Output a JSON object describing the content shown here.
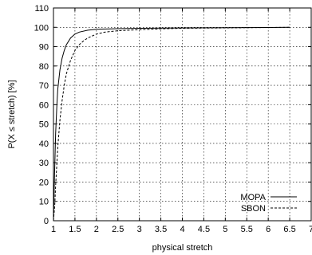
{
  "chart_data": {
    "type": "line",
    "title": "",
    "xlabel": "physical stretch",
    "ylabel": "P(X ≤ stretch) [%]",
    "xlim": [
      1,
      7
    ],
    "ylim": [
      0,
      110
    ],
    "xticks": [
      "1",
      "1.5",
      "2",
      "2.5",
      "3",
      "3.5",
      "4",
      "4.5",
      "5",
      "5.5",
      "6",
      "6.5",
      "7"
    ],
    "yticks": [
      "0",
      "10",
      "20",
      "30",
      "40",
      "50",
      "60",
      "70",
      "80",
      "90",
      "100",
      "110"
    ],
    "grid": true,
    "legend_position": "bottom-right",
    "series": [
      {
        "name": "MOPA",
        "style": "solid",
        "x": [
          1.0,
          1.02,
          1.05,
          1.08,
          1.1,
          1.15,
          1.2,
          1.25,
          1.3,
          1.4,
          1.5,
          1.6,
          1.8,
          2.0,
          2.5,
          3.0,
          3.5,
          4.0,
          5.0,
          6.0,
          6.5
        ],
        "y": [
          0,
          20,
          45,
          60,
          68,
          78,
          84,
          88,
          91,
          94.5,
          96.5,
          97.5,
          98.5,
          99,
          99.3,
          99.5,
          99.6,
          99.7,
          99.8,
          99.9,
          100
        ]
      },
      {
        "name": "SBON",
        "style": "dashed",
        "x": [
          1.0,
          1.03,
          1.05,
          1.1,
          1.15,
          1.2,
          1.25,
          1.3,
          1.4,
          1.5,
          1.6,
          1.7,
          1.8,
          2.0,
          2.2,
          2.5,
          3.0,
          3.5,
          4.0,
          5.0,
          6.0,
          6.5
        ],
        "y": [
          0,
          8,
          18,
          38,
          52,
          62,
          70,
          76,
          83,
          88,
          91,
          93,
          94.5,
          96.5,
          97.5,
          98.2,
          98.8,
          99.2,
          99.5,
          99.7,
          99.9,
          100
        ]
      }
    ]
  }
}
